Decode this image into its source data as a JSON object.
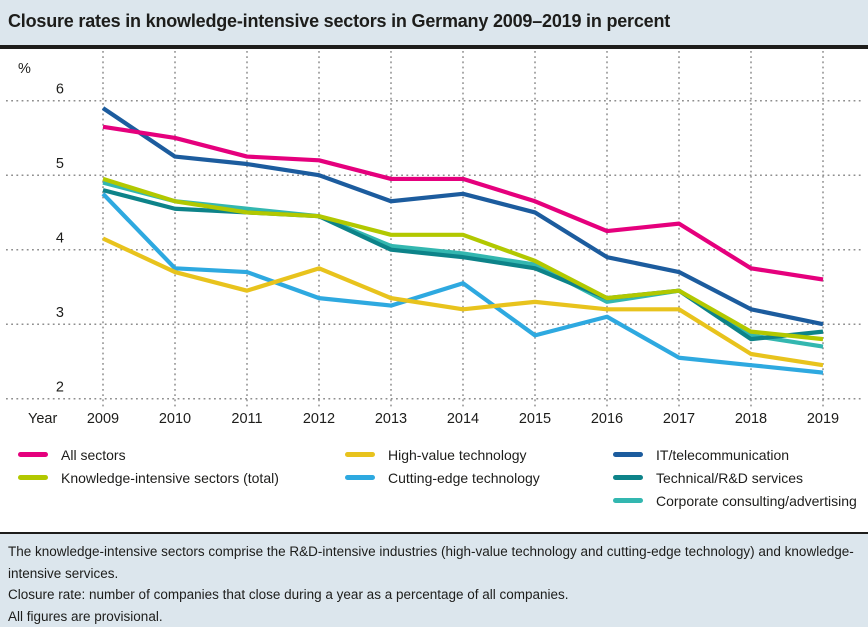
{
  "title": "Closure rates in knowledge-intensive sectors in Germany 2009–2019 in percent",
  "axis": {
    "unit_label": "%",
    "year_label": "Year"
  },
  "footnotes": [
    "The knowledge-intensive sectors comprise the R&D-intensive industries (high-value technology and cutting-edge technology) and knowledge-intensive services.",
    "Closure rate: number of companies that close during a year as a percentage of all companies.",
    "All figures are provisional."
  ],
  "colors": {
    "background": "#dce6ed",
    "panel": "#ffffff",
    "rule": "#1d1d1b",
    "grid": "#8e8e8e",
    "text": "#1d1d1b"
  },
  "chart_data": {
    "type": "line",
    "title": "Closure rates in knowledge-intensive sectors in Germany 2009–2019 in percent",
    "xlabel": "Year",
    "ylabel": "%",
    "x": [
      2009,
      2010,
      2011,
      2012,
      2013,
      2014,
      2015,
      2016,
      2017,
      2018,
      2019
    ],
    "ylim": [
      2,
      6
    ],
    "yticks": [
      6,
      5,
      4,
      3,
      2
    ],
    "grid": "dotted, both axes",
    "legend_position": "bottom, three columns",
    "series": [
      {
        "name": "All sectors",
        "color": "#e5007d",
        "values": [
          5.65,
          5.5,
          5.25,
          5.2,
          4.95,
          4.95,
          4.65,
          4.25,
          4.35,
          3.75,
          3.6
        ]
      },
      {
        "name": "Knowledge-intensive sectors (total)",
        "color": "#b2c800",
        "values": [
          4.95,
          4.65,
          4.5,
          4.45,
          4.2,
          4.2,
          3.85,
          3.35,
          3.45,
          2.9,
          2.8
        ]
      },
      {
        "name": "High-value technology",
        "color": "#e8c31d",
        "values": [
          4.15,
          3.7,
          3.45,
          3.75,
          3.35,
          3.2,
          3.3,
          3.2,
          3.2,
          2.6,
          2.45
        ]
      },
      {
        "name": "Cutting-edge technology",
        "color": "#2ea9e0",
        "values": [
          4.75,
          3.75,
          3.7,
          3.35,
          3.25,
          3.55,
          2.85,
          3.1,
          2.55,
          2.45,
          2.35
        ]
      },
      {
        "name": "IT/telecommunication",
        "color": "#1c5c9e",
        "values": [
          5.9,
          5.25,
          5.15,
          5.0,
          4.65,
          4.75,
          4.5,
          3.9,
          3.7,
          3.2,
          3.0
        ]
      },
      {
        "name": "Technical/R&D services",
        "color": "#0d8389",
        "values": [
          4.8,
          4.55,
          4.5,
          4.45,
          4.0,
          3.9,
          3.75,
          3.35,
          3.45,
          2.8,
          2.9
        ]
      },
      {
        "name": "Corporate consulting/advertising",
        "color": "#33b7b0",
        "values": [
          4.9,
          4.65,
          4.55,
          4.45,
          4.05,
          3.95,
          3.8,
          3.3,
          3.45,
          2.85,
          2.7
        ]
      }
    ]
  },
  "legend_columns": [
    [
      0,
      1
    ],
    [
      2,
      3
    ],
    [
      4,
      5,
      6
    ]
  ]
}
